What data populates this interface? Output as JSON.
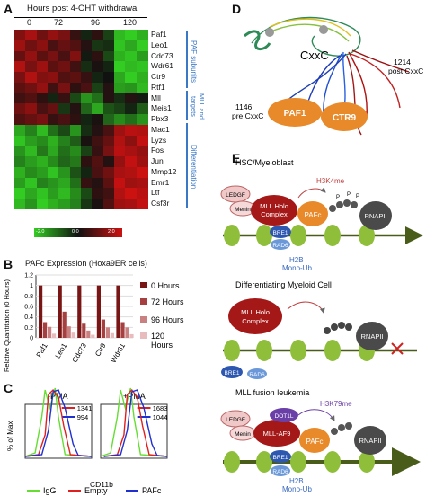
{
  "panels": {
    "a": "A",
    "b": "B",
    "c": "C",
    "d": "D",
    "e": "E"
  },
  "heatmap": {
    "title": "Hours post 4-OHT withdrawal",
    "timepoints": [
      "0",
      "72",
      "96",
      "120"
    ],
    "genes": [
      "Paf1",
      "Leo1",
      "Cdc73",
      "Wdr61",
      "Ctr9",
      "Rtf1",
      "Mll",
      "Meis1",
      "Pbx3",
      "Mac1",
      "Lyzs",
      "Fos",
      "Jun",
      "Mmp12",
      "Emr1",
      "Ltf",
      "Csf3r"
    ],
    "groups": [
      {
        "label": "PAF subunits",
        "start": 0,
        "end": 5
      },
      {
        "label": "MLL and targets",
        "start": 6,
        "end": 8
      },
      {
        "label": "Differentiation",
        "start": 9,
        "end": 16
      }
    ],
    "scale": [
      "-2.0",
      "0.0",
      "2.0"
    ],
    "colors": {
      "low": "#33cc22",
      "mid": "#111111",
      "high": "#cc1111"
    },
    "values": [
      [
        1.2,
        1.6,
        1.0,
        1.4,
        1.1,
        0.4,
        -0.2,
        0.3,
        -0.5,
        -1.8,
        -2.0,
        -1.7
      ],
      [
        1.5,
        1.0,
        1.3,
        0.6,
        0.9,
        0.7,
        0.2,
        -0.4,
        -0.3,
        -1.9,
        -1.6,
        -2.0
      ],
      [
        0.9,
        1.4,
        0.8,
        1.1,
        0.6,
        1.2,
        -0.1,
        0.3,
        -0.6,
        -1.7,
        -1.9,
        -1.5
      ],
      [
        1.7,
        1.1,
        1.5,
        0.8,
        1.0,
        0.5,
        -0.3,
        0.1,
        -0.2,
        -2.0,
        -1.8,
        -1.9
      ],
      [
        1.1,
        1.7,
        1.2,
        1.3,
        0.7,
        0.8,
        0.4,
        -0.2,
        0.0,
        -1.6,
        -2.0,
        -1.7
      ],
      [
        0.8,
        1.0,
        1.4,
        0.5,
        1.1,
        0.3,
        0.6,
        -0.5,
        0.2,
        -1.5,
        -1.4,
        -1.8
      ],
      [
        0.5,
        0.7,
        0.3,
        -0.2,
        0.4,
        -0.6,
        -1.4,
        -1.0,
        0.2,
        -0.3,
        0.2,
        -0.1
      ],
      [
        1.0,
        1.3,
        0.6,
        0.9,
        -0.4,
        0.2,
        -0.9,
        -1.6,
        -0.7,
        -0.5,
        -0.2,
        -0.8
      ],
      [
        0.7,
        0.9,
        1.1,
        0.4,
        0.6,
        0.3,
        -0.2,
        0.1,
        -0.9,
        -1.3,
        -1.0,
        -1.4
      ],
      [
        -1.6,
        -1.2,
        -1.8,
        -1.0,
        -0.6,
        -1.4,
        -0.3,
        0.2,
        0.6,
        1.5,
        1.8,
        1.7
      ],
      [
        -1.9,
        -1.5,
        -1.3,
        -1.7,
        -1.2,
        -0.8,
        0.1,
        0.5,
        0.9,
        1.7,
        1.3,
        1.9
      ],
      [
        -1.4,
        -1.8,
        -1.1,
        -1.6,
        -1.0,
        -1.3,
        -0.5,
        0.4,
        1.1,
        1.8,
        1.6,
        1.4
      ],
      [
        -1.2,
        -1.5,
        -1.7,
        -1.3,
        -0.9,
        -1.1,
        0.3,
        0.7,
        0.2,
        1.4,
        1.9,
        1.5
      ],
      [
        -1.7,
        -1.3,
        -1.5,
        -1.9,
        -1.4,
        -0.7,
        -0.2,
        0.6,
        1.0,
        1.6,
        1.7,
        2.0
      ],
      [
        -1.5,
        -1.9,
        -1.2,
        -1.4,
        -1.6,
        -1.0,
        0.4,
        0.2,
        0.8,
        1.9,
        1.5,
        1.6
      ],
      [
        -2.0,
        -1.6,
        -1.9,
        -1.5,
        -1.8,
        -1.3,
        -0.6,
        0.3,
        0.5,
        1.7,
        2.0,
        1.8
      ],
      [
        -1.8,
        -1.4,
        -2.0,
        -1.7,
        -1.5,
        -1.2,
        -0.4,
        0.1,
        0.7,
        1.5,
        1.6,
        1.9
      ]
    ]
  },
  "chart_data": {
    "type": "bar",
    "title": "PAFc Expression (Hoxa9ER cells)",
    "ylabel": "Relative Quantitation (0 Hours)",
    "categories": [
      "Paf1",
      "Leo1",
      "Cdc73",
      "Ctr9",
      "Wdr61"
    ],
    "yticks": [
      "0",
      "0.2",
      "0.4",
      "0.6",
      "0.8",
      "1",
      "1.2"
    ],
    "ylim": [
      0,
      1.2
    ],
    "series": [
      {
        "name": "0 Hours",
        "color": "#7a1515",
        "values": [
          1.0,
          1.0,
          1.0,
          1.0,
          1.0
        ]
      },
      {
        "name": "72 Hours",
        "color": "#a64040",
        "values": [
          0.3,
          0.5,
          0.27,
          0.35,
          0.3
        ]
      },
      {
        "name": "96 Hours",
        "color": "#c98080",
        "values": [
          0.21,
          0.22,
          0.14,
          0.2,
          0.2
        ]
      },
      {
        "name": "120 Hours",
        "color": "#e8bcbc",
        "values": [
          0.08,
          0.1,
          0.06,
          0.09,
          0.07
        ]
      }
    ],
    "legend_labels": [
      "0 Hours",
      "72 Hours",
      "96 Hours",
      "120",
      "Hours"
    ]
  },
  "flow": {
    "ylabel": "% of Max",
    "xlabel": "CD11b",
    "legend": [
      "IgG",
      "Empty",
      "PAFc"
    ],
    "colors": {
      "igg": "#66dd33",
      "empty": "#e02020",
      "pafc": "#2030d0"
    },
    "panels": [
      {
        "title": "-PMA",
        "n1": "1341",
        "n2": "994"
      },
      {
        "title": "+PMA",
        "n1": "1683",
        "n2": "1044"
      }
    ]
  },
  "structure": {
    "domain": "CxxC",
    "paf1": "PAF1",
    "ctr9": "CTR9",
    "left_num": "1146",
    "left_txt": "pre CxxC",
    "right_num": "1214",
    "right_txt": "post CxxC"
  },
  "model": {
    "s1_title": "HSC/Myeloblast",
    "s2_title": "Differentiating Myeloid Cell",
    "s3_title": "MLL fusion leukemia",
    "lede": "LEDGF",
    "menin": "Menin",
    "mll_holo": "MLL Holo Complex",
    "mll_holo_l1": "MLL Holo",
    "mll_holo_l2": "Complex",
    "pafc": "PAFc",
    "bre1": "BRE1",
    "rad6": "RAD6",
    "rnapii": "RNAPII",
    "h3k4me": "H3K4me",
    "h2b_l1": "H2B",
    "h2b_l2": "Mono-Ub",
    "p": "P",
    "mll_af9": "MLL-AF9",
    "dot1l": "DOT1L",
    "h3k79me": "H3K79me"
  }
}
